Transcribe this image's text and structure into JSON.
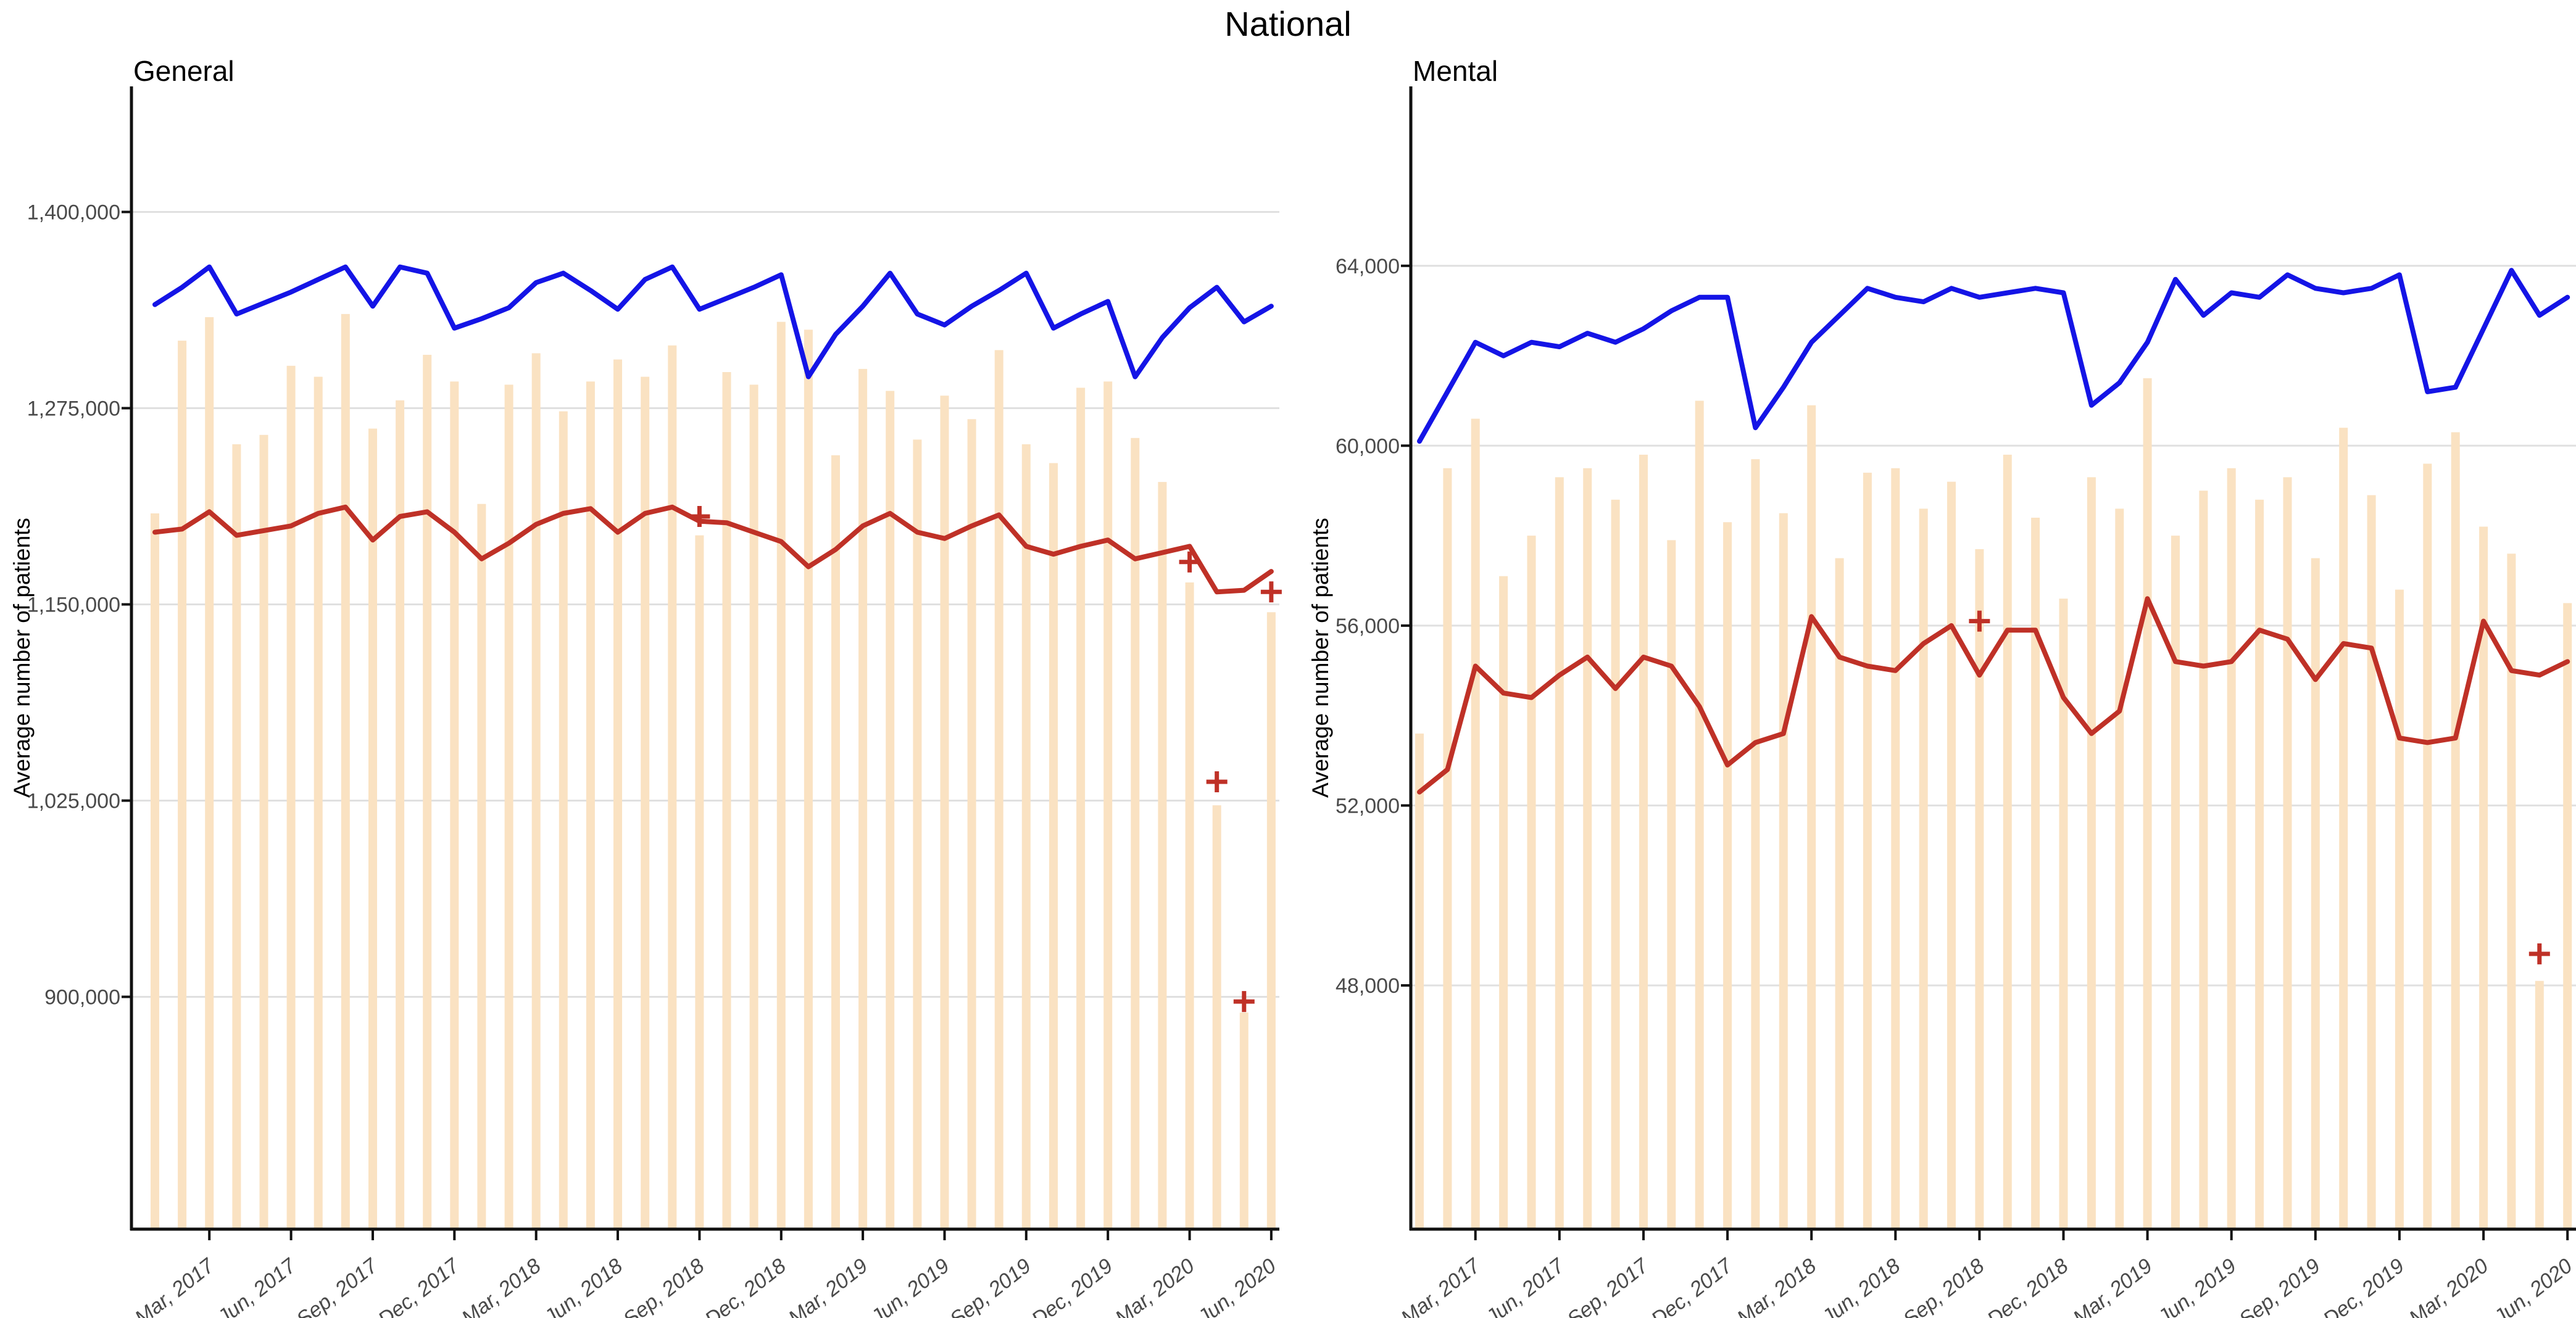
{
  "title": "National",
  "y_axis_label": "Average number of patients",
  "colors": {
    "blue_line": "#1414e6",
    "red_line": "#bf3127",
    "bar": "#fae2c2",
    "grid": "#e0e0e0",
    "axis": "#111111",
    "tick_text": "#4a4a4a"
  },
  "chart_data": [
    {
      "type": "line+bar",
      "title": "General",
      "ylabel": "Average number of patients",
      "ylim": [
        752000,
        1480000
      ],
      "grid": true,
      "legend": "none",
      "yticks": [
        {
          "value": 1400000,
          "label": "1,400,000"
        },
        {
          "value": 1275000,
          "label": "1,275,000"
        },
        {
          "value": 1150000,
          "label": "1,150,000"
        },
        {
          "value": 1025000,
          "label": "1,025,000"
        },
        {
          "value": 900000,
          "label": "900,000"
        }
      ],
      "months": [
        "Jan, 2017",
        "Feb, 2017",
        "Mar, 2017",
        "Apr, 2017",
        "May, 2017",
        "Jun, 2017",
        "Jul, 2017",
        "Aug, 2017",
        "Sep, 2017",
        "Oct, 2017",
        "Nov, 2017",
        "Dec, 2017",
        "Jan, 2018",
        "Feb, 2018",
        "Mar, 2018",
        "Apr, 2018",
        "May, 2018",
        "Jun, 2018",
        "Jul, 2018",
        "Aug, 2018",
        "Sep, 2018",
        "Oct, 2018",
        "Nov, 2018",
        "Dec, 2018",
        "Jan, 2019",
        "Feb, 2019",
        "Mar, 2019",
        "Apr, 2019",
        "May, 2019",
        "Jun, 2019",
        "Jul, 2019",
        "Aug, 2019",
        "Sep, 2019",
        "Oct, 2019",
        "Nov, 2019",
        "Dec, 2019",
        "Jan, 2020",
        "Feb, 2020",
        "Mar, 2020",
        "Apr, 2020",
        "May, 2020",
        "Jun, 2020"
      ],
      "x_tick_labels": [
        "Mar, 2017",
        "Jun, 2017",
        "Sep, 2017",
        "Dec, 2017",
        "Mar, 2018",
        "Jun, 2018",
        "Sep, 2018",
        "Dec, 2018",
        "Mar, 2019",
        "Jun, 2019",
        "Sep, 2019",
        "Dec, 2019",
        "Mar, 2020",
        "Jun, 2020"
      ],
      "series": [
        {
          "name": "upper-trend-line",
          "color_key": "blue_line",
          "values": [
            1341000,
            1352000,
            1365000,
            1335000,
            1342000,
            1349000,
            1357000,
            1365000,
            1340000,
            1365000,
            1361000,
            1326000,
            1332000,
            1339000,
            1355000,
            1361000,
            1350000,
            1338000,
            1357000,
            1365000,
            1338000,
            1345000,
            1352000,
            1360000,
            1295000,
            1322000,
            1340000,
            1361000,
            1335000,
            1328000,
            1340000,
            1350000,
            1361000,
            1326000,
            1335000,
            1343000,
            1295000,
            1320000,
            1339000,
            1352000,
            1330000,
            1340000
          ]
        },
        {
          "name": "lower-trend-line",
          "color_key": "red_line",
          "values": [
            1196000,
            1198000,
            1209000,
            1194000,
            1197000,
            1200000,
            1208000,
            1212000,
            1191000,
            1206000,
            1209000,
            1196000,
            1179000,
            1189000,
            1201000,
            1208000,
            1211000,
            1196000,
            1208000,
            1212000,
            1203000,
            1202000,
            1196000,
            1190000,
            1174000,
            1185000,
            1200000,
            1208000,
            1196000,
            1192000,
            1200000,
            1207000,
            1187000,
            1182000,
            1187000,
            1191000,
            1179000,
            1183000,
            1187000,
            1158000,
            1159000,
            1171000
          ]
        }
      ],
      "bars": {
        "name": "monthly-range-bar",
        "values": [
          1208000,
          1318000,
          1333000,
          1252000,
          1258000,
          1302000,
          1295000,
          1335000,
          1262000,
          1280000,
          1309000,
          1292000,
          1214000,
          1290000,
          1310000,
          1273000,
          1292000,
          1306000,
          1295000,
          1315000,
          1194000,
          1298000,
          1290000,
          1330000,
          1325000,
          1245000,
          1300000,
          1286000,
          1255000,
          1283000,
          1268000,
          1312000,
          1252000,
          1240000,
          1288000,
          1292000,
          1256000,
          1228000,
          1164000,
          1022000,
          890000,
          1145000
        ]
      },
      "markers": {
        "name": "outlier-plus-marker",
        "symbol": "+",
        "points": [
          {
            "month": "Sep, 2018",
            "value": 1206000
          },
          {
            "month": "Mar, 2020",
            "value": 1177000
          },
          {
            "month": "Apr, 2020",
            "value": 1037000
          },
          {
            "month": "May, 2020",
            "value": 897000
          },
          {
            "month": "Jun, 2020",
            "value": 1158000
          }
        ]
      }
    },
    {
      "type": "line+bar",
      "title": "Mental",
      "ylabel": "Average number of patients",
      "ylim": [
        42580,
        67990
      ],
      "grid": true,
      "legend": "none",
      "yticks": [
        {
          "value": 64000,
          "label": "64,000"
        },
        {
          "value": 60000,
          "label": "60,000"
        },
        {
          "value": 56000,
          "label": "56,000"
        },
        {
          "value": 52000,
          "label": "52,000"
        },
        {
          "value": 48000,
          "label": "48,000"
        }
      ],
      "months": [
        "Jan, 2017",
        "Feb, 2017",
        "Mar, 2017",
        "Apr, 2017",
        "May, 2017",
        "Jun, 2017",
        "Jul, 2017",
        "Aug, 2017",
        "Sep, 2017",
        "Oct, 2017",
        "Nov, 2017",
        "Dec, 2017",
        "Jan, 2018",
        "Feb, 2018",
        "Mar, 2018",
        "Apr, 2018",
        "May, 2018",
        "Jun, 2018",
        "Jul, 2018",
        "Aug, 2018",
        "Sep, 2018",
        "Oct, 2018",
        "Nov, 2018",
        "Dec, 2018",
        "Jan, 2019",
        "Feb, 2019",
        "Mar, 2019",
        "Apr, 2019",
        "May, 2019",
        "Jun, 2019",
        "Jul, 2019",
        "Aug, 2019",
        "Sep, 2019",
        "Oct, 2019",
        "Nov, 2019",
        "Dec, 2019",
        "Jan, 2020",
        "Feb, 2020",
        "Mar, 2020",
        "Apr, 2020",
        "May, 2020",
        "Jun, 2020"
      ],
      "x_tick_labels": [
        "Mar, 2017",
        "Jun, 2017",
        "Sep, 2017",
        "Dec, 2017",
        "Mar, 2018",
        "Jun, 2018",
        "Sep, 2018",
        "Dec, 2018",
        "Mar, 2019",
        "Jun, 2019",
        "Sep, 2019",
        "Dec, 2019",
        "Mar, 2020",
        "Jun, 2020"
      ],
      "series": [
        {
          "name": "upper-trend-line",
          "color_key": "blue_line",
          "values": [
            60100,
            61200,
            62300,
            62000,
            62300,
            62200,
            62500,
            62300,
            62600,
            63000,
            63300,
            63300,
            60400,
            61300,
            62300,
            62900,
            63500,
            63300,
            63200,
            63500,
            63300,
            63400,
            63500,
            63400,
            60900,
            61400,
            62300,
            63700,
            62900,
            63400,
            63300,
            63800,
            63500,
            63400,
            63500,
            63800,
            61200,
            61300,
            62600,
            63900,
            62900,
            63300
          ]
        },
        {
          "name": "lower-trend-line",
          "color_key": "red_line",
          "values": [
            52300,
            52800,
            55100,
            54500,
            54400,
            54900,
            55300,
            54600,
            55300,
            55100,
            54200,
            52900,
            53400,
            53600,
            56200,
            55300,
            55100,
            55000,
            55600,
            56000,
            54900,
            55900,
            55900,
            54400,
            53600,
            54100,
            56600,
            55200,
            55100,
            55200,
            55900,
            55700,
            54800,
            55600,
            55500,
            53500,
            53400,
            53500,
            56100,
            55000,
            54900,
            55200
          ]
        }
      ],
      "bars": {
        "name": "monthly-range-bar",
        "values": [
          53600,
          59500,
          60600,
          57100,
          58000,
          59300,
          59500,
          58800,
          59800,
          57900,
          61000,
          58300,
          59700,
          58500,
          60900,
          57500,
          59400,
          59500,
          58600,
          59200,
          57700,
          59800,
          58400,
          56600,
          59300,
          58600,
          61500,
          58000,
          59000,
          59500,
          58800,
          59300,
          57500,
          60400,
          58900,
          56800,
          59600,
          60300,
          58200,
          57600,
          48100,
          56500
        ]
      },
      "markers": {
        "name": "outlier-plus-marker",
        "symbol": "+",
        "points": [
          {
            "month": "Sep, 2018",
            "value": 56100
          },
          {
            "month": "May, 2020",
            "value": 48700
          }
        ]
      }
    }
  ]
}
